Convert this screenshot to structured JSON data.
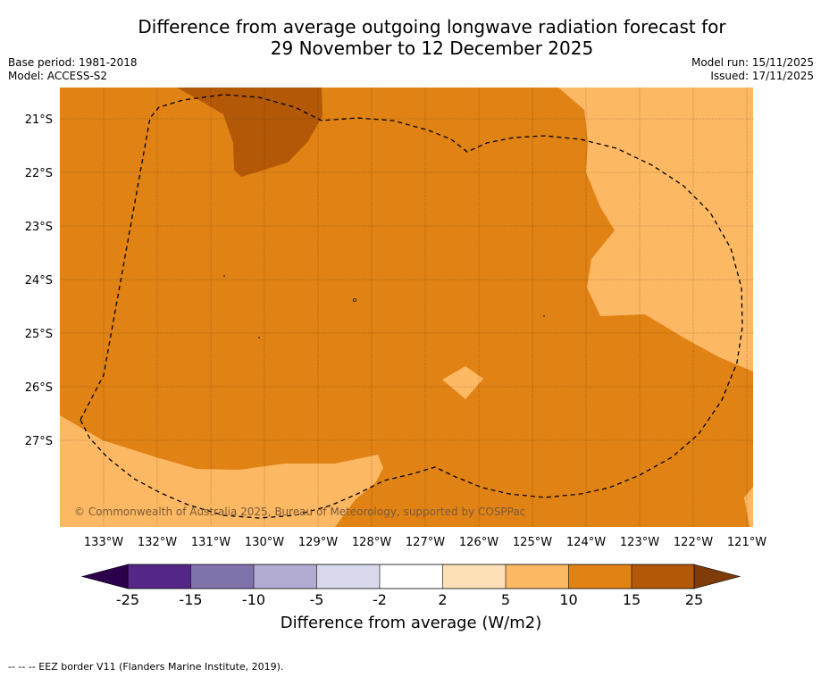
{
  "header": {
    "title_line1": "Difference from average outgoing longwave radiation forecast for",
    "title_line2": "29 November to 12 December 2025",
    "base_period": "Base period: 1981-2018",
    "model": "Model: ACCESS-S2",
    "model_run": "Model run: 15/11/2025",
    "issued": "Issued: 17/11/2025"
  },
  "map": {
    "lat_labels": [
      "21°S",
      "22°S",
      "23°S",
      "24°S",
      "25°S",
      "26°S",
      "27°S"
    ],
    "lon_labels": [
      "133°W",
      "132°W",
      "131°W",
      "130°W",
      "129°W",
      "128°W",
      "127°W",
      "126°W",
      "125°W",
      "124°W",
      "123°W",
      "122°W",
      "121°W"
    ],
    "copyright": "© Commonwealth of Australia 2025, Bureau of Meteorology, supported by COSPPac",
    "colors": {
      "class_10_15": "#e08214",
      "class_15_25": "#b35806",
      "class_5_10": "#fdb863"
    }
  },
  "colorbar": {
    "ticks": [
      "-25",
      "-15",
      "-10",
      "-5",
      "-2",
      "2",
      "5",
      "10",
      "15",
      "25"
    ],
    "colors": [
      "#542788",
      "#8073ac",
      "#b2abd2",
      "#d8daeb",
      "#ffffff",
      "#fee0b6",
      "#fdb863",
      "#e08214",
      "#b35806"
    ],
    "low_extend_color": "#2d004b",
    "high_extend_color": "#7f3b08",
    "label": "Difference from average (W/m2)"
  },
  "footnote": "--  --  -- EEZ border V11 (Flanders Marine Institute, 2019)."
}
